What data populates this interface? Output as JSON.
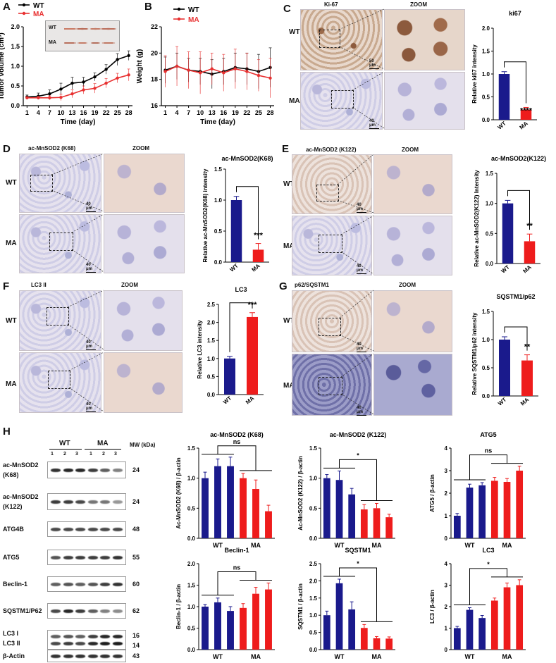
{
  "panels": {
    "A": {
      "letter": "A",
      "legend": [
        "WT",
        "MA"
      ],
      "ylabel": "Tumor volume (cm³)",
      "xlabel": "Time (day)",
      "inset": [
        "WT",
        "MA"
      ]
    },
    "B": {
      "letter": "B",
      "legend": [
        "WT",
        "MA"
      ],
      "ylabel": "Weight (g)",
      "xlabel": "Time (day)"
    },
    "C": {
      "letter": "C",
      "img_title": "Ki-67",
      "zoom": "ZOOM",
      "rows": [
        "WT",
        "MA"
      ],
      "scale": [
        "50 μm",
        "40 μm"
      ]
    },
    "D": {
      "letter": "D",
      "img_title": "ac-MnSOD2 (K68)",
      "zoom": "ZOOM",
      "rows": [
        "WT",
        "MA"
      ],
      "scale": [
        "40 μm",
        "40 μm"
      ]
    },
    "E": {
      "letter": "E",
      "img_title": "ac-MnSOD2 (K122)",
      "zoom": "ZOOM",
      "rows": [
        "WT",
        "MA"
      ],
      "scale": [
        "40 μm",
        "40 μm"
      ]
    },
    "F": {
      "letter": "F",
      "img_title": "LC3 II",
      "zoom": "ZOOM",
      "rows": [
        "WT",
        "MA"
      ],
      "scale": [
        "40 μm",
        "40 μm"
      ]
    },
    "G": {
      "letter": "G",
      "img_title": "p62/SQSTM1",
      "zoom": "ZOOM",
      "rows": [
        "WT",
        "MA"
      ],
      "scale": [
        "40 μm",
        "40 μm"
      ]
    },
    "H": {
      "letter": "H",
      "groups": [
        "WT",
        "MA"
      ],
      "lanes": [
        "1",
        "2",
        "3",
        "1",
        "2",
        "3"
      ],
      "mw_header": "MW (kDa)",
      "blots": [
        {
          "name": "ac-MnSOD2\n(K68)",
          "l1": "ac-MnSOD2",
          "l2": "(K68)",
          "mw": "24"
        },
        {
          "name": "ac-MnSOD2\n(K122)",
          "l1": "ac-MnSOD2",
          "l2": "(K122)",
          "mw": "24"
        },
        {
          "name": "ATG4B",
          "l1": "ATG4B",
          "l2": "",
          "mw": "48"
        },
        {
          "name": "ATG5",
          "l1": "ATG5",
          "l2": "",
          "mw": "55"
        },
        {
          "name": "Beclin-1",
          "l1": "Beclin-1",
          "l2": "",
          "mw": "60"
        },
        {
          "name": "SQSTM1/P62",
          "l1": "SQSTM1/P62",
          "l2": "",
          "mw": "62"
        },
        {
          "name": "LC3",
          "l1": "LC3 I",
          "l2": "LC3 II",
          "mw": "16",
          "mw2": "14"
        },
        {
          "name": "β-Actin",
          "l1": "β-Actin",
          "l2": "",
          "mw": "43"
        }
      ]
    }
  },
  "colors": {
    "wt": "#1a1a8c",
    "ma": "#ee1c1c",
    "wt_line": "#000000",
    "ma_line": "#e83030"
  },
  "chart_data": [
    {
      "id": "A",
      "type": "line",
      "title": "",
      "xlabel": "Time (day)",
      "ylabel": "Tumor volume (cm³)",
      "x": [
        1,
        4,
        7,
        10,
        13,
        16,
        19,
        22,
        25,
        28
      ],
      "ylim": [
        0,
        2.0
      ],
      "yticks": [
        0.0,
        0.5,
        1.0,
        1.5,
        2.0
      ],
      "series": [
        {
          "name": "WT",
          "values": [
            0.22,
            0.24,
            0.3,
            0.42,
            0.57,
            0.6,
            0.73,
            0.92,
            1.17,
            1.27
          ],
          "errors": [
            0.05,
            0.08,
            0.1,
            0.15,
            0.15,
            0.12,
            0.1,
            0.12,
            0.15,
            0.12
          ]
        },
        {
          "name": "MA",
          "values": [
            0.2,
            0.2,
            0.2,
            0.21,
            0.3,
            0.4,
            0.44,
            0.57,
            0.7,
            0.78
          ],
          "errors": [
            0.03,
            0.04,
            0.05,
            0.08,
            0.1,
            0.1,
            0.12,
            0.12,
            0.12,
            0.15
          ]
        }
      ]
    },
    {
      "id": "B",
      "type": "line",
      "title": "",
      "xlabel": "Time (day)",
      "ylabel": "Weight (g)",
      "x": [
        1,
        4,
        7,
        10,
        13,
        16,
        19,
        22,
        25,
        28
      ],
      "ylim": [
        16,
        22
      ],
      "yticks": [
        16,
        18,
        20,
        22
      ],
      "series": [
        {
          "name": "WT",
          "values": [
            18.7,
            19.0,
            18.7,
            18.6,
            18.4,
            18.6,
            18.9,
            18.8,
            18.6,
            18.9
          ],
          "errors": [
            1.0,
            1.0,
            0.9,
            1.0,
            1.1,
            1.0,
            1.1,
            1.2,
            1.3,
            1.5
          ]
        },
        {
          "name": "MA",
          "values": [
            18.6,
            19.0,
            18.7,
            18.5,
            18.8,
            18.5,
            18.8,
            18.6,
            18.3,
            18.1
          ],
          "errors": [
            1.2,
            1.5,
            1.4,
            1.6,
            1.2,
            1.4,
            1.5,
            1.4,
            1.2,
            1.5
          ]
        }
      ]
    },
    {
      "id": "C",
      "type": "bar",
      "title": "ki67",
      "ylabel": "Relative ki67 intensity",
      "categories": [
        "WT",
        "MA"
      ],
      "values": [
        1.0,
        0.22
      ],
      "errors": [
        0.05,
        0.05
      ],
      "ylim": [
        0,
        2.0
      ],
      "yticks": [
        0.0,
        0.5,
        1.0,
        1.5,
        2.0
      ],
      "sig": "****"
    },
    {
      "id": "D",
      "type": "bar",
      "title": "ac-MnSOD2(K68)",
      "ylabel": "Relative ac-MnSOD2(K68) intensity",
      "categories": [
        "WT",
        "MA"
      ],
      "values": [
        1.0,
        0.2
      ],
      "errors": [
        0.06,
        0.1
      ],
      "ylim": [
        0,
        1.5
      ],
      "yticks": [
        0.0,
        0.5,
        1.0,
        1.5
      ],
      "sig": "***"
    },
    {
      "id": "E",
      "type": "bar",
      "title": "ac-MnSOD2(K122)",
      "ylabel": "Relative ac-MnSOD2(K122) Intensity",
      "categories": [
        "WT",
        "MA"
      ],
      "values": [
        1.0,
        0.37
      ],
      "errors": [
        0.05,
        0.12
      ],
      "ylim": [
        0,
        1.5
      ],
      "yticks": [
        0.0,
        0.5,
        1.0,
        1.5
      ],
      "sig": "**"
    },
    {
      "id": "F",
      "type": "bar",
      "title": "LC3",
      "ylabel": "Relative LC3 intensity",
      "categories": [
        "WT",
        "MA"
      ],
      "values": [
        1.0,
        2.15
      ],
      "errors": [
        0.06,
        0.12
      ],
      "ylim": [
        0,
        2.5
      ],
      "yticks": [
        0.0,
        0.5,
        1.0,
        1.5,
        2.0,
        2.5
      ],
      "sig": "***"
    },
    {
      "id": "G",
      "type": "bar",
      "title": "SQSTM1/p62",
      "ylabel": "Relative SQSTM1/p62 intensity",
      "categories": [
        "WT",
        "MA"
      ],
      "values": [
        1.0,
        0.63
      ],
      "errors": [
        0.05,
        0.1
      ],
      "ylim": [
        0,
        1.5
      ],
      "yticks": [
        0.0,
        0.5,
        1.0,
        1.5
      ],
      "sig": "**"
    },
    {
      "id": "H1",
      "type": "bar",
      "title": "ac-MnSOD2 (K68)",
      "ylabel": "Ac-MnSOD2 (K68) / β-actin",
      "groups": [
        "WT",
        "MA"
      ],
      "values": [
        1.0,
        1.2,
        1.2,
        1.0,
        0.82,
        0.45
      ],
      "errors": [
        0.1,
        0.12,
        0.15,
        0.08,
        0.15,
        0.1
      ],
      "ylim": [
        0,
        1.5
      ],
      "yticks": [
        0.0,
        0.5,
        1.0,
        1.5
      ],
      "sig": "ns"
    },
    {
      "id": "H2",
      "type": "bar",
      "title": "ac-MnSOD2 (K122)",
      "ylabel": "Ac-MnSOD2 (K122) / β-actin",
      "groups": [
        "WT",
        "MA"
      ],
      "values": [
        1.0,
        0.97,
        0.73,
        0.48,
        0.5,
        0.35
      ],
      "errors": [
        0.06,
        0.15,
        0.1,
        0.08,
        0.08,
        0.05
      ],
      "ylim": [
        0,
        1.5
      ],
      "yticks": [
        0.0,
        0.5,
        1.0,
        1.5
      ],
      "sig": "*"
    },
    {
      "id": "H3",
      "type": "bar",
      "title": "ATG5",
      "ylabel": "ATG5 / β-actin",
      "groups": [
        "WT",
        "MA"
      ],
      "values": [
        1.0,
        2.25,
        2.35,
        2.55,
        2.5,
        3.0
      ],
      "errors": [
        0.1,
        0.15,
        0.12,
        0.15,
        0.15,
        0.2
      ],
      "ylim": [
        0,
        4
      ],
      "yticks": [
        0,
        1,
        2,
        3,
        4
      ],
      "sig": "ns"
    },
    {
      "id": "H4",
      "type": "bar",
      "title": "Beclin-1",
      "ylabel": "Beclin-1 / β-actin",
      "groups": [
        "WT",
        "MA"
      ],
      "values": [
        1.0,
        1.1,
        0.9,
        0.97,
        1.3,
        1.4
      ],
      "errors": [
        0.05,
        0.1,
        0.1,
        0.1,
        0.15,
        0.15
      ],
      "ylim": [
        0,
        2.0
      ],
      "yticks": [
        0.0,
        0.5,
        1.0,
        1.5,
        2.0
      ],
      "sig": "ns"
    },
    {
      "id": "H5",
      "type": "bar",
      "title": "SQSTM1",
      "ylabel": "SQSTM1 / β-actin",
      "groups": [
        "WT",
        "MA"
      ],
      "values": [
        1.0,
        1.93,
        1.17,
        0.63,
        0.33,
        0.32
      ],
      "errors": [
        0.12,
        0.12,
        0.22,
        0.1,
        0.05,
        0.05
      ],
      "ylim": [
        0,
        2.5
      ],
      "yticks": [
        0.0,
        0.5,
        1.0,
        1.5,
        2.0,
        2.5
      ],
      "sig": "*"
    },
    {
      "id": "H6",
      "type": "bar",
      "title": "LC3",
      "ylabel": "LC3 / β-actin",
      "groups": [
        "WT",
        "MA"
      ],
      "values": [
        1.0,
        1.85,
        1.47,
        2.28,
        2.9,
        3.0
      ],
      "errors": [
        0.08,
        0.1,
        0.12,
        0.12,
        0.2,
        0.25
      ],
      "ylim": [
        0,
        4
      ],
      "yticks": [
        0,
        1,
        2,
        3,
        4
      ],
      "sig": "*"
    }
  ]
}
